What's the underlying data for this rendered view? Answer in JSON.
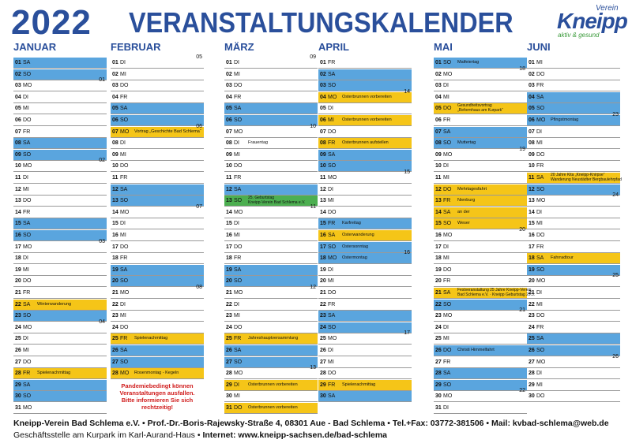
{
  "header": {
    "year": "2022",
    "title": "VERANSTALTUNGSKALENDER",
    "logo_top": "Verein",
    "logo_main": "Kneipp",
    "logo_sub": "aktiv & gesund"
  },
  "months": [
    {
      "name": "JANUAR",
      "days": [
        {
          "d": "01",
          "w": "SA",
          "c": "#5aa5de"
        },
        {
          "d": "02",
          "w": "SO",
          "c": "#5aa5de"
        },
        {
          "d": "03",
          "w": "MO",
          "k": "01"
        },
        {
          "d": "04",
          "w": "DI"
        },
        {
          "d": "05",
          "w": "MI"
        },
        {
          "d": "06",
          "w": "DO"
        },
        {
          "d": "07",
          "w": "FR"
        },
        {
          "d": "08",
          "w": "SA",
          "c": "#5aa5de"
        },
        {
          "d": "09",
          "w": "SO",
          "c": "#5aa5de"
        },
        {
          "d": "10",
          "w": "MO",
          "k": "02"
        },
        {
          "d": "11",
          "w": "DI"
        },
        {
          "d": "12",
          "w": "MI"
        },
        {
          "d": "13",
          "w": "DO"
        },
        {
          "d": "14",
          "w": "FR"
        },
        {
          "d": "15",
          "w": "SA",
          "c": "#5aa5de"
        },
        {
          "d": "16",
          "w": "SO",
          "c": "#5aa5de"
        },
        {
          "d": "17",
          "w": "MO",
          "k": "03"
        },
        {
          "d": "18",
          "w": "DI"
        },
        {
          "d": "19",
          "w": "MI"
        },
        {
          "d": "20",
          "w": "DO"
        },
        {
          "d": "21",
          "w": "FR"
        },
        {
          "d": "22",
          "w": "SA",
          "c": "#f5c518",
          "e": "Winterwanderung"
        },
        {
          "d": "23",
          "w": "SO",
          "c": "#5aa5de"
        },
        {
          "d": "24",
          "w": "MO",
          "k": "04"
        },
        {
          "d": "25",
          "w": "DI"
        },
        {
          "d": "26",
          "w": "MI"
        },
        {
          "d": "27",
          "w": "DO"
        },
        {
          "d": "28",
          "w": "FR",
          "c": "#f5c518",
          "e": "Spielenachmittag"
        },
        {
          "d": "29",
          "w": "SA",
          "c": "#5aa5de"
        },
        {
          "d": "30",
          "w": "SO",
          "c": "#5aa5de"
        },
        {
          "d": "31",
          "w": "MO"
        }
      ]
    },
    {
      "name": "FEBRUAR",
      "note": "Pandemiebedingt können\nVeranstaltungen ausfallen.\nBitte informieren Sie sich\nrechtzeitig!",
      "days": [
        {
          "d": "01",
          "w": "DI",
          "k": "05"
        },
        {
          "d": "02",
          "w": "MI"
        },
        {
          "d": "03",
          "w": "DO"
        },
        {
          "d": "04",
          "w": "FR"
        },
        {
          "d": "05",
          "w": "SA",
          "c": "#5aa5de"
        },
        {
          "d": "06",
          "w": "SO",
          "c": "#5aa5de"
        },
        {
          "d": "07",
          "w": "MO",
          "k": "06",
          "c": "#f5c518",
          "e": "Vortrag „Geschichte Bad Schlema“"
        },
        {
          "d": "08",
          "w": "DI"
        },
        {
          "d": "09",
          "w": "MI"
        },
        {
          "d": "10",
          "w": "DO"
        },
        {
          "d": "11",
          "w": "FR"
        },
        {
          "d": "12",
          "w": "SA",
          "c": "#5aa5de"
        },
        {
          "d": "13",
          "w": "SO",
          "c": "#5aa5de"
        },
        {
          "d": "14",
          "w": "MO",
          "k": "07"
        },
        {
          "d": "15",
          "w": "DI"
        },
        {
          "d": "16",
          "w": "MI"
        },
        {
          "d": "17",
          "w": "DO"
        },
        {
          "d": "18",
          "w": "FR"
        },
        {
          "d": "19",
          "w": "SA",
          "c": "#5aa5de"
        },
        {
          "d": "20",
          "w": "SO",
          "c": "#5aa5de"
        },
        {
          "d": "21",
          "w": "MO",
          "k": "08"
        },
        {
          "d": "22",
          "w": "DI"
        },
        {
          "d": "23",
          "w": "MI"
        },
        {
          "d": "24",
          "w": "DO"
        },
        {
          "d": "25",
          "w": "FR",
          "c": "#f5c518",
          "e": "Spielenachmittag"
        },
        {
          "d": "26",
          "w": "SA",
          "c": "#5aa5de"
        },
        {
          "d": "27",
          "w": "SO",
          "c": "#5aa5de"
        },
        {
          "d": "28",
          "w": "MO",
          "c": "#f5c518",
          "e": "Rosenmontag - Kegeln"
        }
      ]
    },
    {
      "name": "MÄRZ",
      "days": [
        {
          "d": "01",
          "w": "DI",
          "k": "09"
        },
        {
          "d": "02",
          "w": "MI"
        },
        {
          "d": "03",
          "w": "DO"
        },
        {
          "d": "04",
          "w": "FR"
        },
        {
          "d": "05",
          "w": "SA",
          "c": "#5aa5de"
        },
        {
          "d": "06",
          "w": "SO",
          "c": "#5aa5de"
        },
        {
          "d": "07",
          "w": "MO",
          "k": "10"
        },
        {
          "d": "08",
          "w": "DI",
          "e": "Frauentag"
        },
        {
          "d": "09",
          "w": "MI"
        },
        {
          "d": "10",
          "w": "DO"
        },
        {
          "d": "11",
          "w": "FR"
        },
        {
          "d": "12",
          "w": "SA",
          "c": "#5aa5de"
        },
        {
          "d": "13",
          "w": "SO",
          "c": "#4caf50",
          "e": "25. Geburtstag\nKneipp-Verein Bad Schlema e.V."
        },
        {
          "d": "14",
          "w": "MO",
          "k": "11"
        },
        {
          "d": "15",
          "w": "DI"
        },
        {
          "d": "16",
          "w": "MI"
        },
        {
          "d": "17",
          "w": "DO"
        },
        {
          "d": "18",
          "w": "FR"
        },
        {
          "d": "19",
          "w": "SA",
          "c": "#5aa5de"
        },
        {
          "d": "20",
          "w": "SO",
          "c": "#5aa5de"
        },
        {
          "d": "21",
          "w": "MO",
          "k": "12"
        },
        {
          "d": "22",
          "w": "DI"
        },
        {
          "d": "23",
          "w": "MI"
        },
        {
          "d": "24",
          "w": "DO"
        },
        {
          "d": "25",
          "w": "FR",
          "c": "#f5c518",
          "e": "Jahreshauptversammlung"
        },
        {
          "d": "26",
          "w": "SA",
          "c": "#5aa5de"
        },
        {
          "d": "27",
          "w": "SO",
          "c": "#5aa5de"
        },
        {
          "d": "28",
          "w": "MO",
          "k": "13"
        },
        {
          "d": "29",
          "w": "DI",
          "c": "#f5c518",
          "e": "Osterbrunnen vorbereiten"
        },
        {
          "d": "30",
          "w": "MI"
        },
        {
          "d": "31",
          "w": "DO",
          "c": "#f5c518",
          "e": "Osterbrunnen vorbereiten"
        }
      ]
    },
    {
      "name": "APRIL",
      "days": [
        {
          "d": "01",
          "w": "FR"
        },
        {
          "d": "02",
          "w": "SA",
          "c": "#5aa5de"
        },
        {
          "d": "03",
          "w": "SO",
          "c": "#5aa5de"
        },
        {
          "d": "04",
          "w": "MO",
          "k": "14",
          "c": "#f5c518",
          "e": "Osterbrunnen vorbereiten"
        },
        {
          "d": "05",
          "w": "DI"
        },
        {
          "d": "06",
          "w": "MI",
          "c": "#f5c518",
          "e": "Osterbrunnen vorbereiten"
        },
        {
          "d": "07",
          "w": "DO"
        },
        {
          "d": "08",
          "w": "FR",
          "c": "#f5c518",
          "e": "Osterbrunnen aufstellen"
        },
        {
          "d": "09",
          "w": "SA",
          "c": "#5aa5de"
        },
        {
          "d": "10",
          "w": "SO",
          "c": "#5aa5de"
        },
        {
          "d": "11",
          "w": "MO",
          "k": "15"
        },
        {
          "d": "12",
          "w": "DI"
        },
        {
          "d": "13",
          "w": "MI"
        },
        {
          "d": "14",
          "w": "DO"
        },
        {
          "d": "15",
          "w": "FR",
          "c": "#5aa5de",
          "e": "Karfreitag"
        },
        {
          "d": "16",
          "w": "SA",
          "c": "#f5c518",
          "e": "Osterwanderung"
        },
        {
          "d": "17",
          "w": "SO",
          "c": "#5aa5de",
          "e": "Ostersonntag"
        },
        {
          "d": "18",
          "w": "MO",
          "k": "16",
          "c": "#5aa5de",
          "e": "Ostermontag"
        },
        {
          "d": "19",
          "w": "DI"
        },
        {
          "d": "20",
          "w": "MI"
        },
        {
          "d": "21",
          "w": "DO"
        },
        {
          "d": "22",
          "w": "FR"
        },
        {
          "d": "23",
          "w": "SA",
          "c": "#5aa5de"
        },
        {
          "d": "24",
          "w": "SO",
          "c": "#5aa5de"
        },
        {
          "d": "25",
          "w": "MO",
          "k": "17"
        },
        {
          "d": "26",
          "w": "DI"
        },
        {
          "d": "27",
          "w": "MI"
        },
        {
          "d": "28",
          "w": "DO"
        },
        {
          "d": "29",
          "w": "FR",
          "c": "#f5c518",
          "e": "Spielenachmittag"
        },
        {
          "d": "30",
          "w": "SA",
          "c": "#5aa5de"
        }
      ]
    },
    {
      "name": "MAI",
      "days": [
        {
          "d": "01",
          "w": "SO",
          "c": "#5aa5de",
          "e": "Maifeiertag"
        },
        {
          "d": "02",
          "w": "MO",
          "k": "18"
        },
        {
          "d": "03",
          "w": "DI"
        },
        {
          "d": "04",
          "w": "MI"
        },
        {
          "d": "05",
          "w": "DO",
          "c": "#f5c518",
          "e": "Gesundheitsvortrag\n„Reformhaus am Kurpark“"
        },
        {
          "d": "06",
          "w": "FR"
        },
        {
          "d": "07",
          "w": "SA",
          "c": "#5aa5de"
        },
        {
          "d": "08",
          "w": "SO",
          "c": "#5aa5de",
          "e": "Muttertag"
        },
        {
          "d": "09",
          "w": "MO",
          "k": "19"
        },
        {
          "d": "10",
          "w": "DI"
        },
        {
          "d": "11",
          "w": "MI"
        },
        {
          "d": "12",
          "w": "DO",
          "c": "#f5c518",
          "e": "Mehrtagesfahrt"
        },
        {
          "d": "13",
          "w": "FR",
          "c": "#f5c518",
          "e": "Nienburg"
        },
        {
          "d": "14",
          "w": "SA",
          "c": "#f5c518",
          "e": "an der"
        },
        {
          "d": "15",
          "w": "SO",
          "c": "#f5c518",
          "e": "Weser"
        },
        {
          "d": "16",
          "w": "MO",
          "k": "20"
        },
        {
          "d": "17",
          "w": "DI"
        },
        {
          "d": "18",
          "w": "MI"
        },
        {
          "d": "19",
          "w": "DO"
        },
        {
          "d": "20",
          "w": "FR"
        },
        {
          "d": "21",
          "w": "SA",
          "c": "#f5c518",
          "e": "Festveranstaltung 25 Jahre Kneipp-Verein\nBad Schlema e.V. · Kneipp Geburtstag 29.5."
        },
        {
          "d": "22",
          "w": "SO",
          "c": "#5aa5de"
        },
        {
          "d": "23",
          "w": "MO",
          "k": "21"
        },
        {
          "d": "24",
          "w": "DI"
        },
        {
          "d": "25",
          "w": "MI"
        },
        {
          "d": "26",
          "w": "DO",
          "c": "#5aa5de",
          "e": "Christi Himmelfahrt"
        },
        {
          "d": "27",
          "w": "FR"
        },
        {
          "d": "28",
          "w": "SA",
          "c": "#5aa5de"
        },
        {
          "d": "29",
          "w": "SO",
          "c": "#5aa5de"
        },
        {
          "d": "30",
          "w": "MO",
          "k": "22"
        },
        {
          "d": "31",
          "w": "DI"
        }
      ]
    },
    {
      "name": "JUNI",
      "days": [
        {
          "d": "01",
          "w": "MI"
        },
        {
          "d": "02",
          "w": "DO"
        },
        {
          "d": "03",
          "w": "FR"
        },
        {
          "d": "04",
          "w": "SA",
          "c": "#5aa5de"
        },
        {
          "d": "05",
          "w": "SO",
          "c": "#5aa5de"
        },
        {
          "d": "06",
          "w": "MO",
          "k": "23",
          "c": "#5aa5de",
          "e": "Pfingstmontag"
        },
        {
          "d": "07",
          "w": "DI"
        },
        {
          "d": "08",
          "w": "MI"
        },
        {
          "d": "09",
          "w": "DO"
        },
        {
          "d": "10",
          "w": "FR"
        },
        {
          "d": "11",
          "w": "SA",
          "c": "#f5c518",
          "e": "20 Jahre Kita „Kneipp-Knirpse“\nWanderung Neustädter Bergbaulehrpfad"
        },
        {
          "d": "12",
          "w": "SO",
          "c": "#5aa5de"
        },
        {
          "d": "13",
          "w": "MO",
          "k": "24"
        },
        {
          "d": "14",
          "w": "DI"
        },
        {
          "d": "15",
          "w": "MI"
        },
        {
          "d": "16",
          "w": "DO"
        },
        {
          "d": "17",
          "w": "FR"
        },
        {
          "d": "18",
          "w": "SA",
          "c": "#f5c518",
          "e": "Fahrradtour"
        },
        {
          "d": "19",
          "w": "SO",
          "c": "#5aa5de"
        },
        {
          "d": "20",
          "w": "MO",
          "k": "25"
        },
        {
          "d": "21",
          "w": "DI"
        },
        {
          "d": "22",
          "w": "MI"
        },
        {
          "d": "23",
          "w": "DO"
        },
        {
          "d": "24",
          "w": "FR"
        },
        {
          "d": "25",
          "w": "SA",
          "c": "#5aa5de"
        },
        {
          "d": "26",
          "w": "SO",
          "c": "#5aa5de"
        },
        {
          "d": "27",
          "w": "MO",
          "k": "26"
        },
        {
          "d": "28",
          "w": "DI"
        },
        {
          "d": "29",
          "w": "MI"
        },
        {
          "d": "30",
          "w": "DO"
        }
      ]
    }
  ],
  "footer": {
    "line1": "Kneipp-Verein Bad Schlema e.V. • Prof.-Dr.-Boris-Rajewsky-Straße 4, 08301 Aue - Bad Schlema • Tel.+Fax: 03772-381506 • Mail: kvbad-schlema@web.de",
    "line2a": "Geschäftsstelle am Kurpark im Karl-Aurand-Haus • ",
    "line2b": "Internet: www.kneipp-sachsen.de/bad-schlema"
  }
}
